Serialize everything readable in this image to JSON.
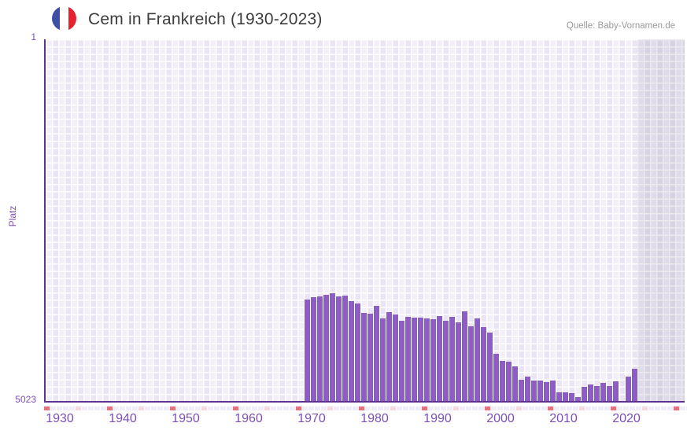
{
  "header": {
    "title": "Cem in Frankreich (1930-2023)",
    "source": "Quelle: Baby-Vornamen.de",
    "flag_icon": "french-flag-icon"
  },
  "axes": {
    "y_label": "Platz",
    "y_top_tick": "1",
    "y_bottom_tick": "5023",
    "x_ticks": [
      "1930",
      "1940",
      "1950",
      "1960",
      "1970",
      "1980",
      "1990",
      "2000",
      "2010",
      "2020"
    ]
  },
  "chart_data": {
    "type": "bar",
    "title": "Cem in Frankreich (1930-2023)",
    "xlabel": "",
    "ylabel": "Platz",
    "x_axis": {
      "min": 1930,
      "max": 2031,
      "tick_step": 10
    },
    "y_axis": {
      "best": 1,
      "worst": 5023,
      "inverted": true,
      "note": "rank 1 at top, bars grow upward from 5023 baseline"
    },
    "grid": true,
    "legend": "none",
    "no_data_years": [
      2021
    ],
    "future_region_start": 2024,
    "series": [
      {
        "name": "Platz",
        "points": [
          {
            "year": 1971,
            "rank": 3610
          },
          {
            "year": 1972,
            "rank": 3585
          },
          {
            "year": 1973,
            "rank": 3575
          },
          {
            "year": 1974,
            "rank": 3550
          },
          {
            "year": 1975,
            "rank": 3525
          },
          {
            "year": 1976,
            "rank": 3565
          },
          {
            "year": 1977,
            "rank": 3555
          },
          {
            "year": 1978,
            "rank": 3640
          },
          {
            "year": 1979,
            "rank": 3665
          },
          {
            "year": 1980,
            "rank": 3795
          },
          {
            "year": 1981,
            "rank": 3810
          },
          {
            "year": 1982,
            "rank": 3705
          },
          {
            "year": 1983,
            "rank": 3875
          },
          {
            "year": 1984,
            "rank": 3785
          },
          {
            "year": 1985,
            "rank": 3820
          },
          {
            "year": 1986,
            "rank": 3905
          },
          {
            "year": 1987,
            "rank": 3850
          },
          {
            "year": 1988,
            "rank": 3860
          },
          {
            "year": 1989,
            "rank": 3865
          },
          {
            "year": 1990,
            "rank": 3875
          },
          {
            "year": 1991,
            "rank": 3890
          },
          {
            "year": 1992,
            "rank": 3840
          },
          {
            "year": 1993,
            "rank": 3905
          },
          {
            "year": 1994,
            "rank": 3850
          },
          {
            "year": 1995,
            "rank": 3930
          },
          {
            "year": 1996,
            "rank": 3780
          },
          {
            "year": 1997,
            "rank": 3980
          },
          {
            "year": 1998,
            "rank": 3875
          },
          {
            "year": 1999,
            "rank": 3995
          },
          {
            "year": 2000,
            "rank": 4075
          },
          {
            "year": 2001,
            "rank": 4370
          },
          {
            "year": 2002,
            "rank": 4465
          },
          {
            "year": 2003,
            "rank": 4480
          },
          {
            "year": 2004,
            "rank": 4540
          },
          {
            "year": 2005,
            "rank": 4730
          },
          {
            "year": 2006,
            "rank": 4680
          },
          {
            "year": 2007,
            "rank": 4735
          },
          {
            "year": 2008,
            "rank": 4735
          },
          {
            "year": 2009,
            "rank": 4765
          },
          {
            "year": 2010,
            "rank": 4735
          },
          {
            "year": 2011,
            "rank": 4900
          },
          {
            "year": 2012,
            "rank": 4905
          },
          {
            "year": 2013,
            "rank": 4915
          },
          {
            "year": 2014,
            "rank": 4970
          },
          {
            "year": 2015,
            "rank": 4830
          },
          {
            "year": 2016,
            "rank": 4795
          },
          {
            "year": 2017,
            "rank": 4815
          },
          {
            "year": 2018,
            "rank": 4775
          },
          {
            "year": 2019,
            "rank": 4815
          },
          {
            "year": 2020,
            "rank": 4745
          },
          {
            "year": 2021,
            "rank": null
          },
          {
            "year": 2022,
            "rank": 4685
          },
          {
            "year": 2023,
            "rank": 4575
          }
        ]
      }
    ]
  },
  "colors": {
    "bar": "#8e5cc7",
    "axis": "#5e3192",
    "tick_text": "#7b50b6",
    "title_text": "#3c3c3c",
    "source_text": "#999999",
    "plot_bg_light": "#f2eefa",
    "plot_bg_dark": "#eae4f4",
    "future_band_overlay": "rgba(104,92,128,0.13)",
    "strip_default": "#f1edf8",
    "strip_half_decade": "#f6d8df",
    "strip_decade": "#e4717c",
    "flag_blue": "#3d50a5",
    "flag_white": "#ffffff",
    "flag_red": "#e8212e"
  }
}
